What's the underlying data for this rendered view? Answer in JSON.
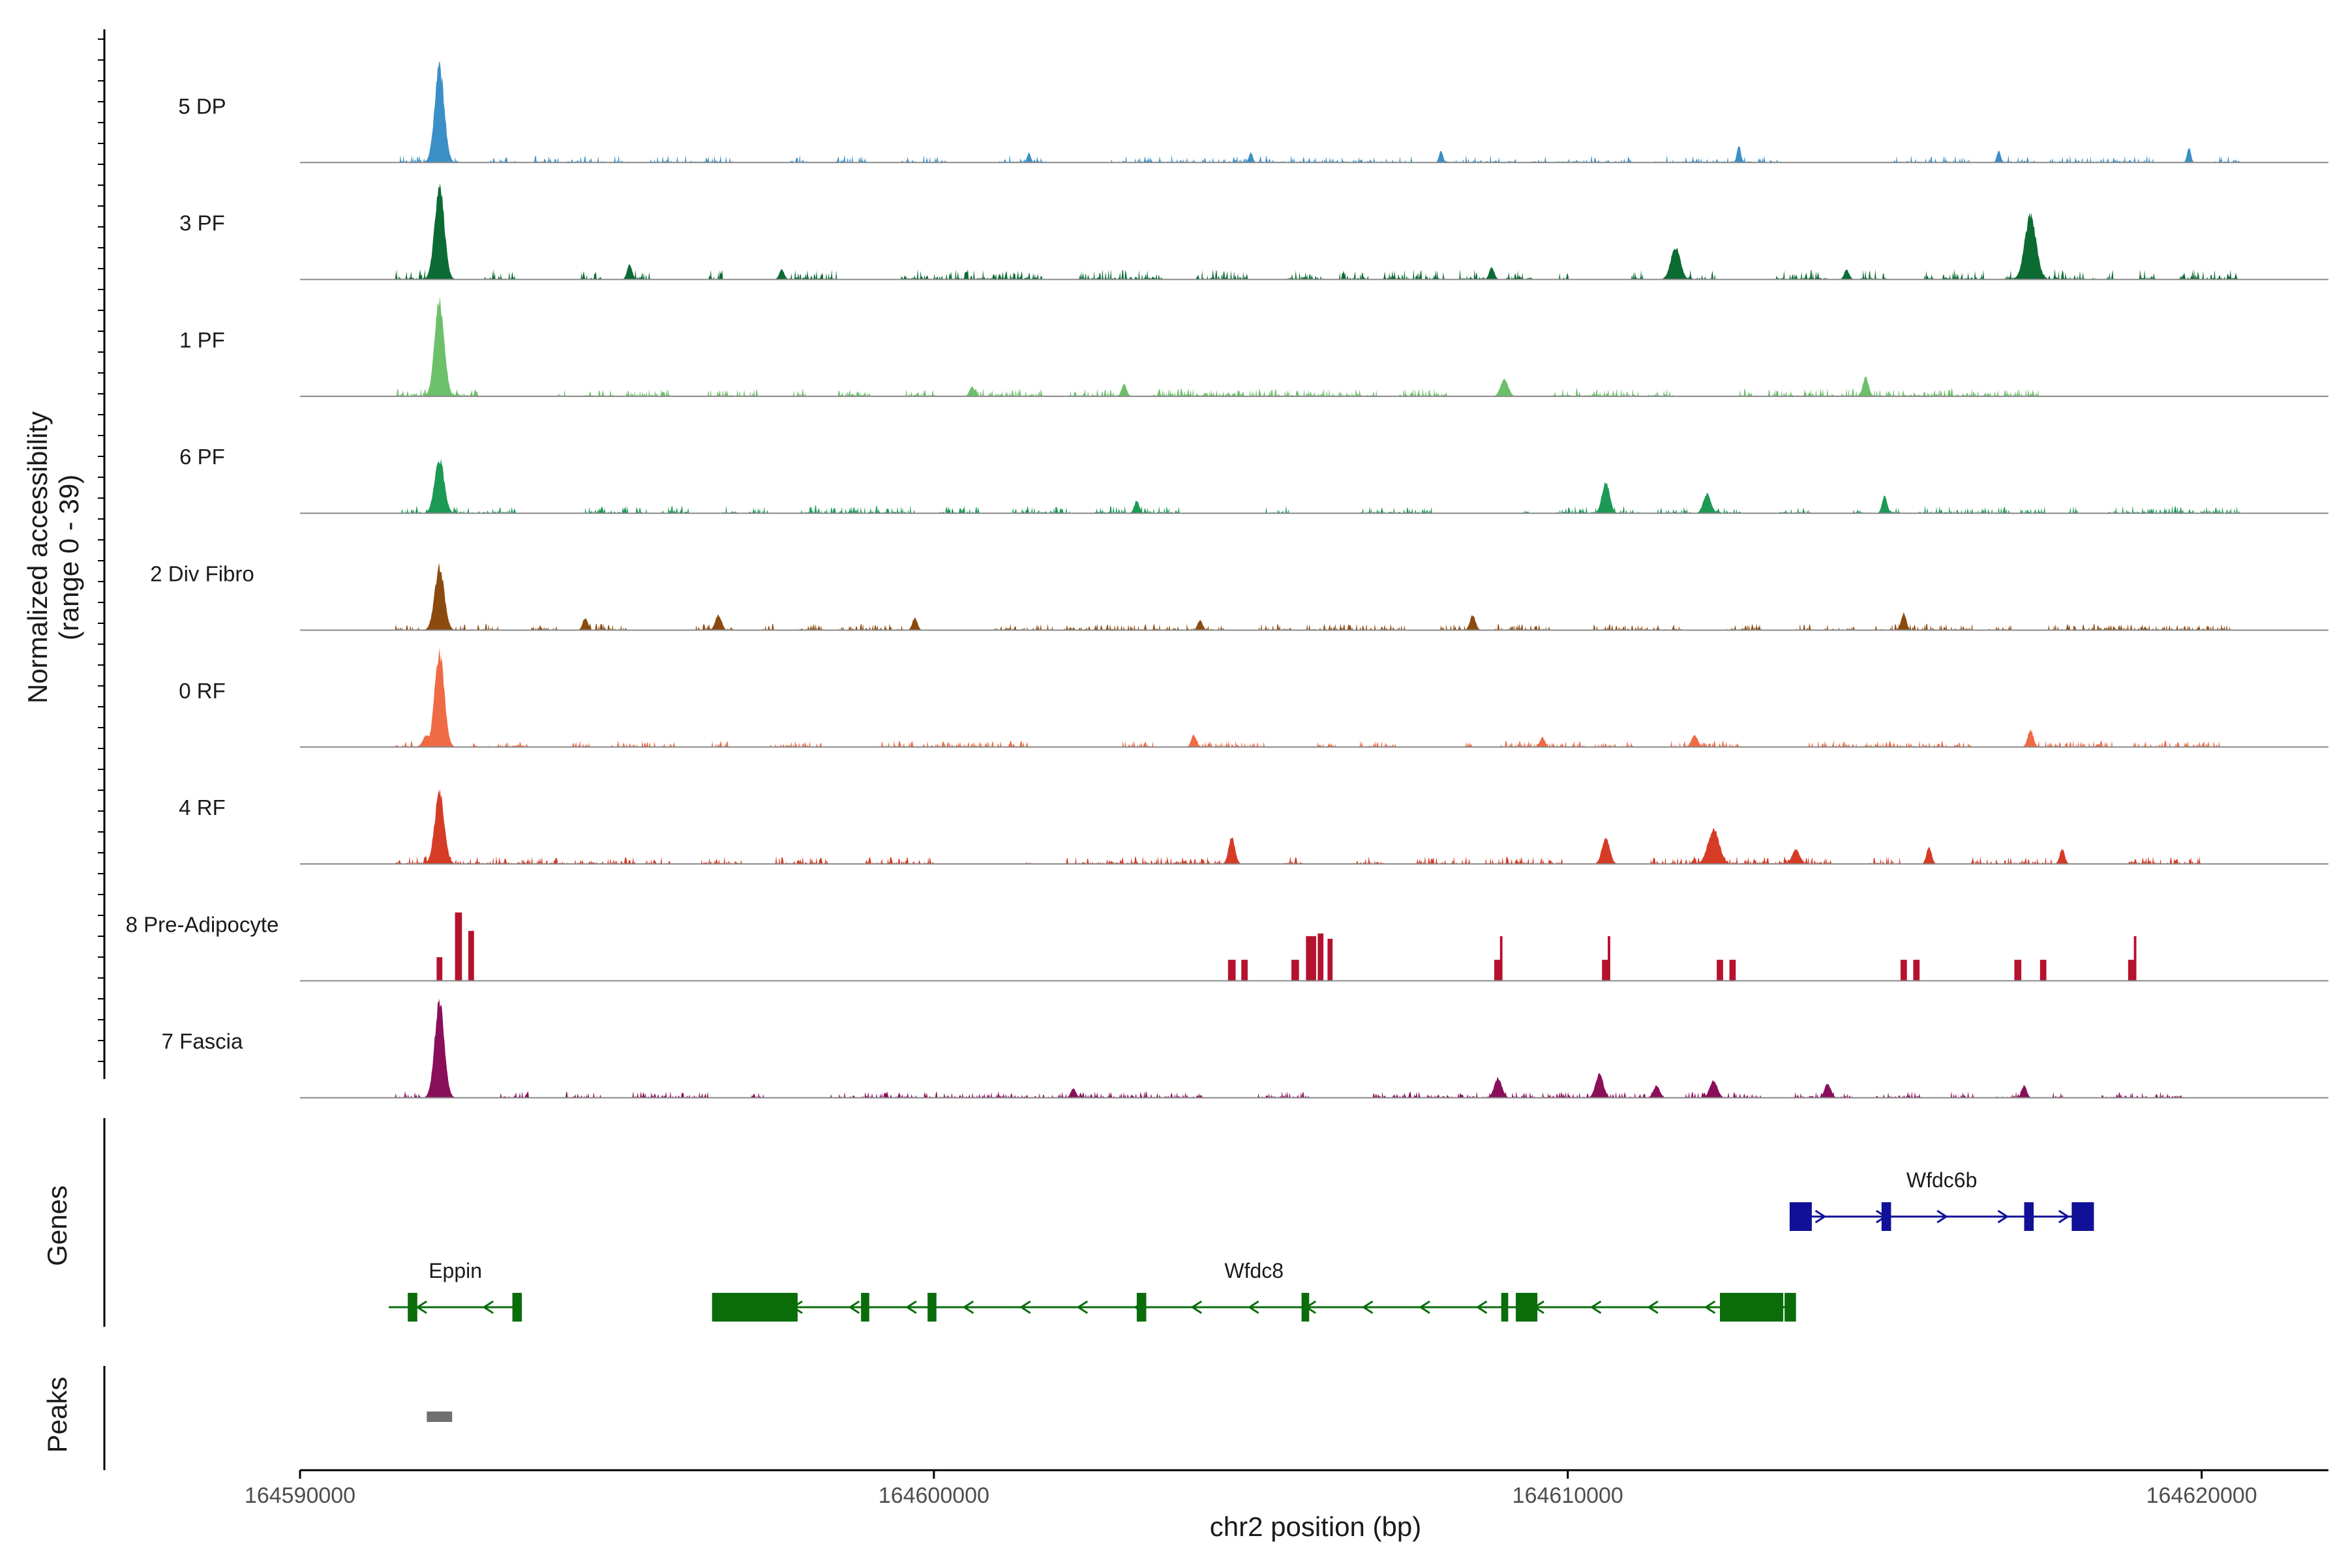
{
  "chart_data": {
    "type": "area",
    "title": "",
    "ylabel": "Normalized accessibility",
    "ylabel_range": "(range 0 - 39)",
    "ylim": [
      0,
      39
    ],
    "xlabel": "chr2 position (bp)",
    "xlim": [
      164590000,
      164622000
    ],
    "x_ticks": [
      164590000,
      164600000,
      164610000,
      164620000
    ],
    "x_tick_labels": [
      "164590000",
      "164600000",
      "164610000",
      "164620000"
    ],
    "tracks": [
      {
        "name": "5 DP",
        "color": "#3a8fc7",
        "range": [
          164591500,
          164620600
        ],
        "peaks": [
          [
            164592200,
            39,
            150
          ],
          [
            164612700,
            7,
            60
          ],
          [
            164619800,
            6,
            60
          ],
          [
            164616800,
            5,
            60
          ],
          [
            164608000,
            5,
            60
          ],
          [
            164601500,
            4,
            60
          ],
          [
            164605000,
            4,
            60
          ]
        ],
        "noise": [
          3,
          0.35
        ]
      },
      {
        "name": "3 PF",
        "color": "#0b6b33",
        "range": [
          164591500,
          164620600
        ],
        "peaks": [
          [
            164592200,
            39,
            150
          ],
          [
            164617300,
            26,
            180
          ],
          [
            164611700,
            13,
            150
          ],
          [
            164595200,
            6,
            80
          ],
          [
            164608800,
            5,
            80
          ],
          [
            164597600,
            4,
            80
          ],
          [
            164614400,
            4,
            80
          ]
        ],
        "noise": [
          4,
          0.5
        ]
      },
      {
        "name": "1 PF",
        "color": "#6cc06a",
        "range": [
          164591500,
          164620200
        ],
        "peaks": [
          [
            164592200,
            39,
            150
          ],
          [
            164614700,
            8,
            90
          ],
          [
            164609000,
            7,
            120
          ],
          [
            164603000,
            5,
            80
          ],
          [
            164600600,
            4,
            80
          ]
        ],
        "noise": [
          3,
          0.6
        ]
      },
      {
        "name": "6 PF",
        "color": "#1c9a55",
        "range": [
          164591600,
          164620600
        ],
        "peaks": [
          [
            164592200,
            22,
            150
          ],
          [
            164610600,
            13,
            120
          ],
          [
            164612200,
            8,
            120
          ],
          [
            164615000,
            7,
            80
          ],
          [
            164603200,
            5,
            80
          ]
        ],
        "noise": [
          3,
          0.45
        ]
      },
      {
        "name": "2 Div Fibro",
        "color": "#8b4a0e",
        "range": [
          164591500,
          164620600
        ],
        "peaks": [
          [
            164592200,
            26,
            150
          ],
          [
            164594500,
            5,
            80
          ],
          [
            164596600,
            6,
            100
          ],
          [
            164599700,
            5,
            80
          ],
          [
            164608500,
            6,
            90
          ],
          [
            164615300,
            7,
            80
          ],
          [
            164604200,
            4,
            80
          ]
        ],
        "noise": [
          2.5,
          0.5
        ]
      },
      {
        "name": "0 RF",
        "color": "#ef6b45",
        "range": [
          164591500,
          164620300
        ],
        "peaks": [
          [
            164592200,
            39,
            150
          ],
          [
            164617300,
            7,
            90
          ],
          [
            164612000,
            5,
            100
          ],
          [
            164604100,
            5,
            80
          ],
          [
            164609600,
            4,
            80
          ],
          [
            164592000,
            5,
            120
          ]
        ],
        "noise": [
          2.5,
          0.6
        ]
      },
      {
        "name": "4 RF",
        "color": "#d63b26",
        "range": [
          164591500,
          164620000
        ],
        "peaks": [
          [
            164592200,
            29,
            150
          ],
          [
            164612300,
            14,
            180
          ],
          [
            164610600,
            11,
            120
          ],
          [
            164604700,
            11,
            100
          ],
          [
            164615700,
            7,
            80
          ],
          [
            164617800,
            6,
            80
          ],
          [
            164613600,
            6,
            120
          ]
        ],
        "noise": [
          3,
          0.5
        ]
      },
      {
        "name": "8 Pre-Adipocyte",
        "color": "#b5122f",
        "range": [
          164591600,
          164620200
        ],
        "bars": [
          [
            164592200,
            9,
            90
          ],
          [
            164592500,
            26,
            110
          ],
          [
            164592700,
            19,
            90
          ],
          [
            164604700,
            8,
            120
          ],
          [
            164604900,
            8,
            100
          ],
          [
            164605700,
            8,
            120
          ],
          [
            164605950,
            17,
            160
          ],
          [
            164606100,
            18,
            90
          ],
          [
            164606250,
            16,
            80
          ],
          [
            164608900,
            8,
            120
          ],
          [
            164608950,
            17,
            40
          ],
          [
            164610600,
            8,
            120
          ],
          [
            164610650,
            17,
            40
          ],
          [
            164612400,
            8,
            100
          ],
          [
            164612600,
            8,
            100
          ],
          [
            164615300,
            8,
            100
          ],
          [
            164615500,
            8,
            100
          ],
          [
            164617100,
            8,
            110
          ],
          [
            164617500,
            8,
            100
          ],
          [
            164618900,
            8,
            120
          ],
          [
            164618950,
            17,
            40
          ]
        ]
      },
      {
        "name": "7 Fascia",
        "color": "#8a0f5b",
        "range": [
          164591500,
          164620100
        ],
        "peaks": [
          [
            164592200,
            39,
            150
          ],
          [
            164610500,
            10,
            120
          ],
          [
            164608900,
            8,
            120
          ],
          [
            164611400,
            5,
            100
          ],
          [
            164612300,
            7,
            120
          ],
          [
            164614100,
            6,
            100
          ],
          [
            164617200,
            5,
            80
          ],
          [
            164602200,
            4,
            80
          ]
        ],
        "noise": [
          2.5,
          0.45
        ]
      }
    ],
    "genes": [
      {
        "name": "Wfdc6b",
        "color": "#101098",
        "strand": "+",
        "row": 0,
        "start": 164613500,
        "end": 164618300,
        "exons": [
          [
            164613500,
            164613850
          ],
          [
            164614950,
            164615100
          ],
          [
            164617200,
            164617350
          ],
          [
            164617950,
            164618300
          ]
        ]
      },
      {
        "name": "Eppin",
        "color": "#0a6d0a",
        "strand": "-",
        "row": 1,
        "start": 164591400,
        "end": 164593500,
        "exons": [
          [
            164591700,
            164591850
          ],
          [
            164593350,
            164593500
          ]
        ]
      },
      {
        "name": "Wfdc8",
        "color": "#0a6d0a",
        "strand": "-",
        "row": 1,
        "start": 164596500,
        "end": 164613600,
        "exons": [
          [
            164596500,
            164597850
          ],
          [
            164598850,
            164598980
          ],
          [
            164599900,
            164600040
          ],
          [
            164603200,
            164603350
          ],
          [
            164605800,
            164605920
          ],
          [
            164608950,
            164609060
          ],
          [
            164609180,
            164609520
          ],
          [
            164612400,
            164613400
          ],
          [
            164613420,
            164613600
          ]
        ]
      }
    ],
    "peaks_track": [
      {
        "start": 164592000,
        "end": 164592400,
        "color": "#707070"
      }
    ],
    "gene_track_label": "Genes",
    "peaks_track_label": "Peaks"
  }
}
